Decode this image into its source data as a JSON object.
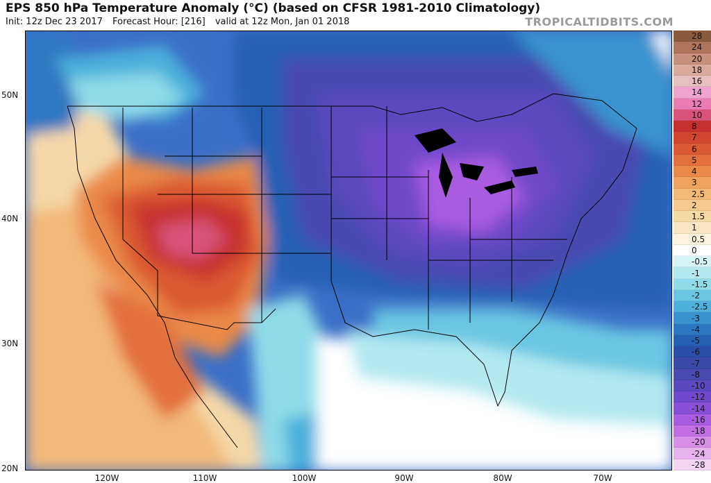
{
  "header": {
    "title": "EPS 850 hPa Temperature Anomaly (°C) (based on CFSR 1981-2010 Climatology)",
    "init": "Init: 12z Dec 23 2017",
    "forecast_hour": "Forecast Hour: [216]",
    "valid": "valid at 12z Mon, Jan 01 2018",
    "brand": "TROPICALTIDBITS.COM"
  },
  "axes": {
    "lat_labels": [
      "50N",
      "40N",
      "30N",
      "20N"
    ],
    "lon_labels": [
      "120W",
      "110W",
      "100W",
      "90W",
      "80W",
      "70W"
    ]
  },
  "colorbar": {
    "levels": [
      {
        "label": "28",
        "color": "#8a5a3c"
      },
      {
        "label": "24",
        "color": "#b0745a"
      },
      {
        "label": "20",
        "color": "#c98f7d"
      },
      {
        "label": "18",
        "color": "#dba99e"
      },
      {
        "label": "16",
        "color": "#e7bfc0"
      },
      {
        "label": "14",
        "color": "#f0a3cf"
      },
      {
        "label": "12",
        "color": "#e97cb3"
      },
      {
        "label": "10",
        "color": "#d9537a"
      },
      {
        "label": "8",
        "color": "#c7312f"
      },
      {
        "label": "7",
        "color": "#d2452e"
      },
      {
        "label": "6",
        "color": "#dc5a33"
      },
      {
        "label": "5",
        "color": "#e2703c"
      },
      {
        "label": "4",
        "color": "#e98a4a"
      },
      {
        "label": "3",
        "color": "#efa35f"
      },
      {
        "label": "2.5",
        "color": "#f3b977"
      },
      {
        "label": "2",
        "color": "#f5ca8e"
      },
      {
        "label": "1.5",
        "color": "#f7d9a6"
      },
      {
        "label": "1",
        "color": "#f9e6c2"
      },
      {
        "label": "0.5",
        "color": "#fcf2df"
      },
      {
        "label": "0",
        "color": "#ffffff"
      },
      {
        "label": "-0.5",
        "color": "#d6f4f6"
      },
      {
        "label": "-1",
        "color": "#b3eaf0"
      },
      {
        "label": "-1.5",
        "color": "#8fdbe9"
      },
      {
        "label": "-2",
        "color": "#6ac6e3"
      },
      {
        "label": "-2.5",
        "color": "#4eb0dc"
      },
      {
        "label": "-3",
        "color": "#3a93cf"
      },
      {
        "label": "-4",
        "color": "#2d77c1"
      },
      {
        "label": "-5",
        "color": "#2660b3"
      },
      {
        "label": "-6",
        "color": "#2a4fa8"
      },
      {
        "label": "-7",
        "color": "#3a4aa6"
      },
      {
        "label": "-8",
        "color": "#4a4ab0"
      },
      {
        "label": "-10",
        "color": "#5b48be"
      },
      {
        "label": "-12",
        "color": "#7048cb"
      },
      {
        "label": "-14",
        "color": "#8a4fd7"
      },
      {
        "label": "-16",
        "color": "#a95ce0"
      },
      {
        "label": "-18",
        "color": "#c46ee3"
      },
      {
        "label": "-20",
        "color": "#d88ee6"
      },
      {
        "label": "-24",
        "color": "#e7b3ec"
      },
      {
        "label": "-28",
        "color": "#f2d6f1"
      }
    ]
  }
}
